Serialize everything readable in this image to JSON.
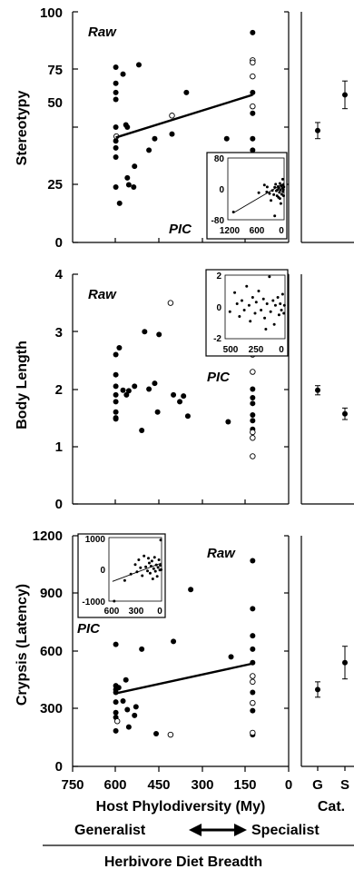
{
  "figure": {
    "xlabel": "Host Phylodiversity (My)",
    "cat_label": "Cat.",
    "generalist": "Generalist",
    "specialist": "Specialist",
    "footer": "Herbivore Diet Breadth"
  },
  "chart_data": [
    {
      "type": "scatter",
      "ylabel": "Stereotypy",
      "raw_label": "Raw",
      "pic_label": "PIC",
      "xlim": [
        750,
        0
      ],
      "ylim": [
        0,
        100
      ],
      "xticks": [
        "750",
        "600",
        "450",
        "300",
        "150",
        "0"
      ],
      "yticks": [
        "0",
        "25",
        "50",
        "75",
        "100"
      ],
      "filled_points": [
        [
          600,
          76
        ],
        [
          600,
          69
        ],
        [
          600,
          65
        ],
        [
          600,
          62
        ],
        [
          600,
          50
        ],
        [
          600,
          44
        ],
        [
          600,
          41
        ],
        [
          600,
          37
        ],
        [
          600,
          24
        ],
        [
          587,
          17
        ],
        [
          575,
          73
        ],
        [
          565,
          51
        ],
        [
          560,
          50
        ],
        [
          560,
          28
        ],
        [
          555,
          25
        ],
        [
          538,
          24
        ],
        [
          535,
          33
        ],
        [
          520,
          77
        ],
        [
          485,
          40
        ],
        [
          465,
          45
        ],
        [
          405,
          47
        ],
        [
          355,
          65
        ],
        [
          215,
          45
        ],
        [
          125,
          91
        ],
        [
          125,
          65
        ],
        [
          125,
          56
        ],
        [
          125,
          45
        ],
        [
          125,
          40
        ],
        [
          125,
          29
        ],
        [
          125,
          18
        ]
      ],
      "open_points": [
        [
          598,
          46
        ],
        [
          405,
          55
        ],
        [
          125,
          79
        ],
        [
          125,
          78
        ],
        [
          125,
          72
        ],
        [
          125,
          59
        ]
      ],
      "fit_line": [
        [
          600,
          45.5
        ],
        [
          125,
          64
        ]
      ],
      "cat_categories": [
        "G",
        "S"
      ],
      "cat_means": [
        48.5,
        64
      ],
      "cat_errors": [
        3.5,
        6
      ],
      "inset": {
        "xlim": [
          1200,
          0
        ],
        "ylim": [
          -80,
          80
        ],
        "xticks": [
          "1200",
          "600",
          "0"
        ],
        "yticks": [
          "80",
          "0",
          "-80"
        ],
        "points": [
          [
            1080,
            -60
          ],
          [
            540,
            -10
          ],
          [
            420,
            10
          ],
          [
            370,
            -8
          ],
          [
            360,
            5
          ],
          [
            310,
            -12
          ],
          [
            280,
            -30
          ],
          [
            250,
            -4
          ],
          [
            220,
            -15
          ],
          [
            200,
            4
          ],
          [
            180,
            12
          ],
          [
            165,
            -5
          ],
          [
            150,
            -18
          ],
          [
            140,
            -2
          ],
          [
            130,
            6
          ],
          [
            120,
            -22
          ],
          [
            110,
            3
          ],
          [
            100,
            -9
          ],
          [
            90,
            14
          ],
          [
            80,
            -3
          ],
          [
            70,
            -38
          ],
          [
            60,
            8
          ],
          [
            50,
            -14
          ],
          [
            40,
            2
          ],
          [
            30,
            25
          ],
          [
            25,
            -7
          ],
          [
            20,
            10
          ],
          [
            15,
            -2
          ],
          [
            10,
            -18
          ],
          [
            5,
            5
          ],
          [
            200,
            -70
          ],
          [
            90,
            -25
          ]
        ],
        "fit_line": [
          [
            1080,
            -62
          ],
          [
            0,
            15
          ]
        ]
      }
    },
    {
      "type": "scatter",
      "ylabel": "Body Length",
      "raw_label": "Raw",
      "pic_label": "PIC",
      "xlim": [
        750,
        0
      ],
      "ylim": [
        0,
        4
      ],
      "xticks": [
        "750",
        "600",
        "450",
        "300",
        "150",
        "0"
      ],
      "yticks": [
        "0",
        "1",
        "2",
        "3",
        "4"
      ],
      "filled_points": [
        [
          600,
          2.6
        ],
        [
          600,
          2.25
        ],
        [
          600,
          2.05
        ],
        [
          600,
          1.9
        ],
        [
          600,
          1.78
        ],
        [
          600,
          1.6
        ],
        [
          600,
          1.5
        ],
        [
          600,
          1.48
        ],
        [
          588,
          2.72
        ],
        [
          575,
          1.98
        ],
        [
          563,
          1.9
        ],
        [
          555,
          1.97
        ],
        [
          535,
          2.05
        ],
        [
          510,
          1.28
        ],
        [
          500,
          3.0
        ],
        [
          485,
          2.0
        ],
        [
          465,
          2.1
        ],
        [
          455,
          1.6
        ],
        [
          450,
          2.95
        ],
        [
          400,
          1.9
        ],
        [
          378,
          1.78
        ],
        [
          365,
          1.88
        ],
        [
          350,
          1.53
        ],
        [
          210,
          1.43
        ],
        [
          125,
          2.0
        ],
        [
          125,
          1.85
        ],
        [
          125,
          1.75
        ],
        [
          125,
          1.55
        ],
        [
          125,
          1.45
        ],
        [
          125,
          1.3
        ]
      ],
      "open_points": [
        [
          410,
          3.5
        ],
        [
          125,
          2.6
        ],
        [
          125,
          2.3
        ],
        [
          125,
          1.25
        ],
        [
          125,
          1.15
        ],
        [
          125,
          0.83
        ]
      ],
      "cat_categories": [
        "G",
        "S"
      ],
      "cat_means": [
        1.98,
        1.57
      ],
      "cat_errors": [
        0.08,
        0.1
      ],
      "inset": {
        "xlim": [
          500,
          0
        ],
        "ylim": [
          -2,
          2
        ],
        "xticks": [
          "500",
          "250",
          "0"
        ],
        "yticks": [
          "2",
          "0",
          "-2"
        ],
        "points": [
          [
            460,
            -0.3
          ],
          [
            420,
            0.9
          ],
          [
            400,
            0.2
          ],
          [
            380,
            -0.6
          ],
          [
            360,
            0.4
          ],
          [
            340,
            -0.2
          ],
          [
            320,
            1.3
          ],
          [
            300,
            0.1
          ],
          [
            290,
            -0.9
          ],
          [
            270,
            0.6
          ],
          [
            250,
            -0.4
          ],
          [
            240,
            0.3
          ],
          [
            220,
            1.0
          ],
          [
            200,
            -0.2
          ],
          [
            180,
            0.5
          ],
          [
            170,
            -0.7
          ],
          [
            150,
            0.2
          ],
          [
            130,
            1.9
          ],
          [
            120,
            -0.3
          ],
          [
            100,
            0.4
          ],
          [
            90,
            -1.1
          ],
          [
            80,
            0.1
          ],
          [
            60,
            0.6
          ],
          [
            50,
            -0.5
          ],
          [
            40,
            0.2
          ],
          [
            30,
            -0.2
          ],
          [
            20,
            0.8
          ],
          [
            10,
            -0.4
          ],
          [
            5,
            0.1
          ],
          [
            160,
            -1.4
          ]
        ]
      }
    },
    {
      "type": "scatter",
      "ylabel": "Crypsis (Latency)",
      "raw_label": "Raw",
      "pic_label": "PIC",
      "xlim": [
        750,
        0
      ],
      "ylim": [
        0,
        1200
      ],
      "xticks": [
        "750",
        "600",
        "450",
        "300",
        "150",
        "0"
      ],
      "yticks": [
        "0",
        "300",
        "600",
        "900",
        "1200"
      ],
      "filled_points": [
        [
          600,
          635
        ],
        [
          600,
          420
        ],
        [
          600,
          400
        ],
        [
          600,
          385
        ],
        [
          600,
          335
        ],
        [
          600,
          280
        ],
        [
          600,
          255
        ],
        [
          600,
          185
        ],
        [
          590,
          410
        ],
        [
          575,
          340
        ],
        [
          565,
          450
        ],
        [
          560,
          295
        ],
        [
          555,
          205
        ],
        [
          535,
          265
        ],
        [
          530,
          310
        ],
        [
          510,
          610
        ],
        [
          460,
          170
        ],
        [
          400,
          650
        ],
        [
          340,
          920
        ],
        [
          200,
          570
        ],
        [
          125,
          1070
        ],
        [
          125,
          820
        ],
        [
          125,
          680
        ],
        [
          125,
          610
        ],
        [
          125,
          540
        ],
        [
          125,
          385
        ],
        [
          125,
          290
        ],
        [
          125,
          165
        ]
      ],
      "open_points": [
        [
          595,
          235
        ],
        [
          410,
          165
        ],
        [
          125,
          470
        ],
        [
          125,
          440
        ],
        [
          125,
          330
        ],
        [
          125,
          175
        ]
      ],
      "fit_line": [
        [
          600,
          380
        ],
        [
          125,
          535
        ]
      ],
      "cat_categories": [
        "G",
        "S"
      ],
      "cat_means": [
        400,
        540
      ],
      "cat_errors": [
        40,
        85
      ],
      "inset": {
        "xlim": [
          600,
          0
        ],
        "ylim": [
          -1000,
          1000
        ],
        "xticks": [
          "600",
          "300",
          "0"
        ],
        "yticks": [
          "1000",
          "0",
          "-1000"
        ],
        "points": [
          [
            540,
            -1000
          ],
          [
            300,
            150
          ],
          [
            280,
            -80
          ],
          [
            260,
            300
          ],
          [
            240,
            50
          ],
          [
            220,
            -200
          ],
          [
            200,
            420
          ],
          [
            180,
            80
          ],
          [
            160,
            -50
          ],
          [
            150,
            350
          ],
          [
            140,
            200
          ],
          [
            130,
            -120
          ],
          [
            120,
            100
          ],
          [
            110,
            260
          ],
          [
            100,
            -300
          ],
          [
            90,
            20
          ],
          [
            80,
            380
          ],
          [
            70,
            -60
          ],
          [
            60,
            140
          ],
          [
            50,
            -220
          ],
          [
            40,
            60
          ],
          [
            30,
            300
          ],
          [
            20,
            -20
          ],
          [
            10,
            920
          ],
          [
            15,
            130
          ],
          [
            5,
            -10
          ],
          [
            350,
            -150
          ],
          [
            420,
            -350
          ]
        ],
        "fit_line": [
          [
            560,
            -380
          ],
          [
            0,
            200
          ]
        ]
      }
    }
  ]
}
